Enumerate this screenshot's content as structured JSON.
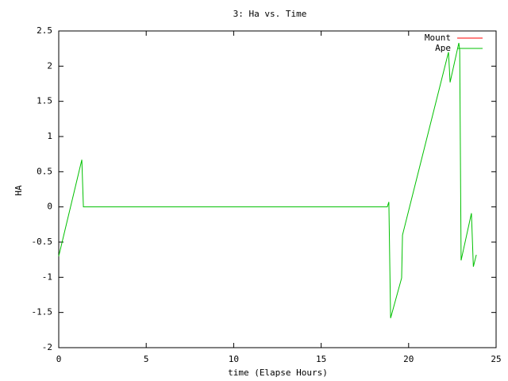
{
  "chart_data": {
    "type": "line",
    "title": "3: Ha vs. Time",
    "x_label": "time (Elapse Hours)",
    "y_label": "HA",
    "xlim": [
      0,
      25
    ],
    "xticks": [
      0,
      5,
      10,
      15,
      20,
      25
    ],
    "ylim": [
      -2,
      2.5
    ],
    "yticks": [
      -2,
      -1.5,
      -1,
      -0.5,
      0,
      0.5,
      1,
      1.5,
      2,
      2.5
    ],
    "legend": "upper right",
    "grid": false,
    "series": [
      {
        "name": "Mount",
        "color": "#ff0000",
        "x": [],
        "values": []
      },
      {
        "name": "Ape",
        "color": "#00c000",
        "x": [
          0,
          1.32,
          1.41,
          18.78,
          18.87,
          18.97,
          19.6,
          19.65,
          22.28,
          22.37,
          22.87,
          22.92,
          23.0,
          23.59,
          23.7,
          23.87
        ],
        "values": [
          -0.7,
          0.67,
          0,
          0,
          0.07,
          -1.58,
          -1.01,
          -0.4,
          2.2,
          1.77,
          2.33,
          2.22,
          -0.76,
          -0.09,
          -0.85,
          -0.68
        ]
      }
    ]
  }
}
